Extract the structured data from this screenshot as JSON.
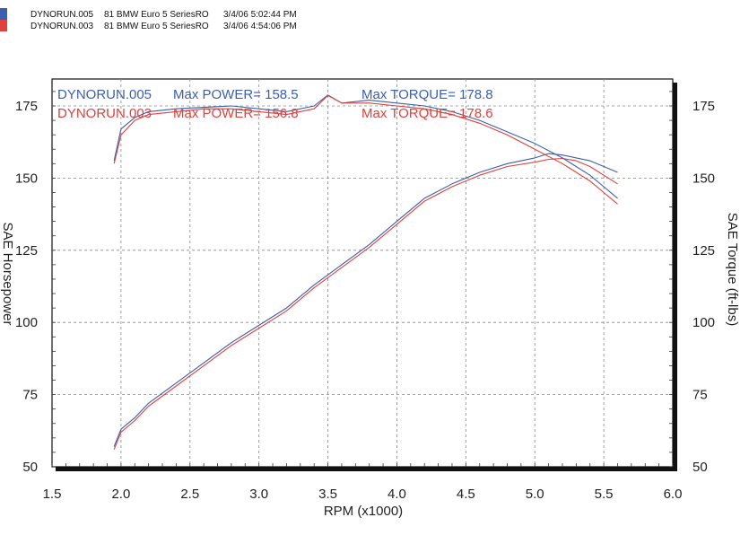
{
  "header": {
    "runs": [
      {
        "file": "DYNORUN.005",
        "vehicle": "81 BMW Euro 5 SeriesRO",
        "datetime": "3/4/06 5:02:44 PM",
        "color": "#3a5fb0"
      },
      {
        "file": "DYNORUN.003",
        "vehicle": "81 BMW Euro 5 SeriesRO",
        "datetime": "3/4/06 4:54:06 PM",
        "color": "#e0413c"
      }
    ]
  },
  "annotations": [
    {
      "run": "DYNORUN.005",
      "power": "Max POWER= 158.5",
      "torque": "Max TORQUE= 178.8",
      "color": "#3a5fb0"
    },
    {
      "run": "DYNORUN.003",
      "power": "Max POWER= 156.8",
      "torque": "Max TORQUE= 178.6",
      "color": "#e0413c"
    }
  ],
  "chart_data": {
    "type": "line",
    "xlabel": "RPM (x1000)",
    "ylabel_left": "SAE Horsepower",
    "ylabel_right": "SAE Torque (ft-lbs)",
    "xlim": [
      1.5,
      6.0
    ],
    "ylim": [
      50,
      180
    ],
    "x_ticks": [
      "1.5",
      "2.0",
      "2.5",
      "3.0",
      "3.5",
      "4.0",
      "4.5",
      "5.0",
      "5.5",
      "6.0"
    ],
    "y_ticks": [
      "50",
      "75",
      "100",
      "125",
      "150",
      "175"
    ],
    "grid": true,
    "series": [
      {
        "name": "DYNORUN.005",
        "measure": "horsepower",
        "color": "#3a5fb0",
        "x": [
          1.95,
          2.0,
          2.1,
          2.2,
          2.4,
          2.6,
          2.8,
          3.0,
          3.2,
          3.4,
          3.6,
          3.8,
          4.0,
          4.2,
          4.4,
          4.6,
          4.8,
          5.0,
          5.1,
          5.2,
          5.3,
          5.4,
          5.5,
          5.6
        ],
        "y": [
          57,
          63,
          67,
          72,
          79,
          86,
          93,
          99,
          105,
          113,
          120,
          127,
          135,
          143,
          148,
          152,
          155,
          157,
          158.5,
          158,
          157,
          156,
          154,
          152
        ]
      },
      {
        "name": "DYNORUN.003",
        "measure": "horsepower",
        "color": "#e0413c",
        "x": [
          1.95,
          2.0,
          2.1,
          2.2,
          2.4,
          2.6,
          2.8,
          3.0,
          3.2,
          3.4,
          3.6,
          3.8,
          4.0,
          4.2,
          4.4,
          4.6,
          4.8,
          5.0,
          5.1,
          5.2,
          5.3,
          5.4,
          5.5,
          5.6
        ],
        "y": [
          56,
          62,
          66,
          71,
          78,
          85,
          92,
          98,
          104,
          112,
          119,
          126,
          134,
          142,
          147,
          151,
          154,
          155.5,
          156.5,
          156.8,
          156,
          154,
          151,
          148
        ]
      },
      {
        "name": "DYNORUN.005",
        "measure": "torque",
        "color": "#3a5fb0",
        "x": [
          1.95,
          2.0,
          2.1,
          2.2,
          2.4,
          2.6,
          2.8,
          3.0,
          3.2,
          3.4,
          3.5,
          3.6,
          3.8,
          4.0,
          4.2,
          4.4,
          4.6,
          4.8,
          5.0,
          5.2,
          5.4,
          5.5,
          5.6
        ],
        "y": [
          156,
          167,
          171,
          173,
          174,
          174.5,
          175,
          174,
          173,
          175,
          178.8,
          176,
          177,
          176,
          175,
          173,
          170,
          166,
          162,
          157,
          151,
          147,
          143
        ]
      },
      {
        "name": "DYNORUN.003",
        "measure": "torque",
        "color": "#e0413c",
        "x": [
          1.95,
          2.0,
          2.1,
          2.2,
          2.4,
          2.6,
          2.8,
          3.0,
          3.2,
          3.4,
          3.5,
          3.6,
          3.8,
          4.0,
          4.2,
          4.4,
          4.6,
          4.8,
          5.0,
          5.2,
          5.4,
          5.5,
          5.6
        ],
        "y": [
          155,
          165,
          170,
          172,
          173,
          174,
          174,
          173,
          172,
          174,
          178.6,
          176,
          176,
          175,
          174,
          172,
          169,
          165,
          160,
          155,
          149,
          145,
          141
        ]
      }
    ]
  }
}
